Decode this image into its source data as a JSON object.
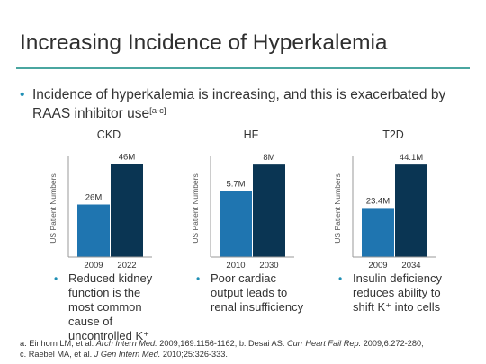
{
  "slide": {
    "title": "Increasing Incidence of Hyperkalemia",
    "main_bullet": "Incidence of hyperkalemia is increasing, and this is exacerbated by RAAS inhibitor use",
    "main_bullet_ref": "[a-c]",
    "bullet_glyph": "•"
  },
  "colors": {
    "bar_early": "#1f75b0",
    "bar_late": "#0a3553",
    "axis": "#999999",
    "rule": "#4aa6a0"
  },
  "chart_data": [
    {
      "type": "bar",
      "title": "CKD",
      "ylabel": "US Patient Numbers",
      "categories": [
        "2009",
        "2022"
      ],
      "values": [
        26,
        46
      ],
      "value_labels": [
        "26M",
        "46M"
      ],
      "ylim": [
        0,
        48
      ]
    },
    {
      "type": "bar",
      "title": "HF",
      "ylabel": "US Patient Numbers",
      "categories": [
        "2010",
        "2030"
      ],
      "values": [
        5.7,
        8
      ],
      "value_labels": [
        "5.7M",
        "8M"
      ],
      "ylim": [
        0,
        8.4
      ]
    },
    {
      "type": "bar",
      "title": "T2D",
      "ylabel": "US Patient Numbers",
      "categories": [
        "2009",
        "2034"
      ],
      "values": [
        23.4,
        44.1
      ],
      "value_labels": [
        "23.4M",
        "44.1M"
      ],
      "ylim": [
        0,
        46.3
      ]
    }
  ],
  "sub_bullets": [
    "Reduced kidney function is the most common cause of uncontrolled K⁺",
    "Poor cardiac output leads to renal insufficiency",
    "Insulin deficiency reduces ability to shift K⁺ into cells"
  ],
  "footnotes": {
    "ref_a_prefix": "a. Einhorn LM, et al. ",
    "ref_a_journal": "Arch Intern Med.",
    "ref_a_suffix": " 2009;169:1156-1162; ",
    "ref_b_prefix": "b. Desai AS. ",
    "ref_b_journal": "Curr Heart Fail Rep.",
    "ref_b_suffix": " 2009;6:272-280;",
    "ref_c_prefix": "c. Raebel MA, et al. ",
    "ref_c_journal": "J Gen Intern Med.",
    "ref_c_suffix": " 2010;25:326-333."
  }
}
